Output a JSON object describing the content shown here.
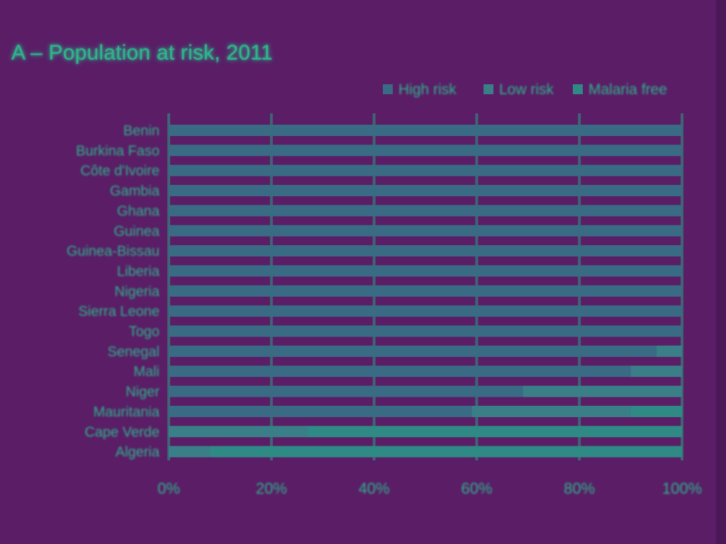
{
  "chart_data": {
    "type": "bar",
    "stacked": true,
    "orientation": "horizontal",
    "title": "A – Population at risk, 2011",
    "categories": [
      "Benin",
      "Burkina Faso",
      "Côte d'Ivoire",
      "Gambia",
      "Ghana",
      "Guinea",
      "Guinea-Bissau",
      "Liberia",
      "Nigeria",
      "Sierra Leone",
      "Togo",
      "Senegal",
      "Mali",
      "Niger",
      "Mauritania",
      "Cape Verde",
      "Algeria"
    ],
    "series": [
      {
        "name": "High risk",
        "color": "#3a6b84",
        "values": [
          100,
          100,
          100,
          100,
          100,
          100,
          100,
          100,
          100,
          100,
          100,
          95,
          90,
          69,
          59,
          0,
          0
        ]
      },
      {
        "name": "Low risk",
        "color": "#3a7f88",
        "values": [
          0,
          0,
          0,
          0,
          0,
          0,
          0,
          0,
          0,
          0,
          0,
          5,
          10,
          31,
          31,
          27,
          8
        ]
      },
      {
        "name": "Malaria free",
        "color": "#2f8a86",
        "values": [
          0,
          0,
          0,
          0,
          0,
          0,
          0,
          0,
          0,
          0,
          0,
          0,
          0,
          0,
          10,
          73,
          92
        ]
      }
    ],
    "xlim": [
      0,
      100
    ],
    "x_ticks": [
      "0%",
      "20%",
      "40%",
      "60%",
      "80%",
      "100%"
    ],
    "legend_position": "top",
    "grid": true
  }
}
